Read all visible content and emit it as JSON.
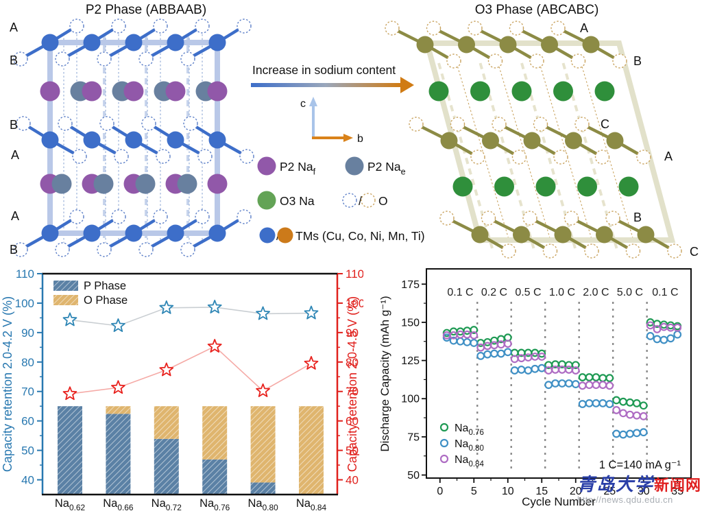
{
  "watermark": {
    "site_name_blue": "青岛大学",
    "site_name_red": "新闻网",
    "url": "http://news.qdu.edu.cn"
  },
  "structures": {
    "p2": {
      "title": "P2 Phase (ABBAAB)",
      "stack_labels": [
        "A",
        "B",
        "B",
        "A",
        "A",
        "B"
      ],
      "colors": {
        "tm": "#3d6ec9",
        "frame": "#b9c8e8",
        "o": "#5b7ec7",
        "naf": "#9158a9",
        "nae": "#68809f",
        "guide_thin": "#8fa9d6",
        "guide_wide": "#c7d4ec"
      }
    },
    "o3": {
      "title": "O3 Phase (ABCABC)",
      "stack_labels": [
        "A",
        "B",
        "C",
        "A",
        "B",
        "C"
      ],
      "colors": {
        "tm": "#8c8b45",
        "frame": "#e2e1ca",
        "o": "#c9a35f",
        "na": "#2f8f3b",
        "guide_thin": "#c9a35f",
        "guide_wide": "#e6e3cd"
      }
    },
    "arrow": {
      "label": "Increase in sodium content",
      "from_color": "#3d6ec9",
      "mid_color": "#9aa7bb",
      "to_color": "#d07b14"
    },
    "axes": {
      "c_label": "c",
      "b_label": "b",
      "c_color": "#a9c4e9",
      "b_color": "#d9821a"
    },
    "legend": {
      "p2_naf": {
        "base": "P2 Na",
        "sub": "f"
      },
      "p2_nae": {
        "base": "P2 Na",
        "sub": "e"
      },
      "o3_na": "O3 Na",
      "o3_na_color": "#63a356",
      "o_label": "O",
      "separator": "/",
      "tms_label": "TMs (Cu, Co, Ni, Mn, Ti)",
      "tm_orange": "#cc7a1a"
    }
  },
  "chart_data": [
    {
      "id": "capacity-retention",
      "type": "bar+line",
      "categories": [
        {
          "base": "Na",
          "sub": "0.62"
        },
        {
          "base": "Na",
          "sub": "0.66"
        },
        {
          "base": "Na",
          "sub": "0.72"
        },
        {
          "base": "Na",
          "sub": "0.76"
        },
        {
          "base": "Na",
          "sub": "0.80"
        },
        {
          "base": "Na",
          "sub": "0.84"
        }
      ],
      "ylabel_left": "Capacity retention 2.0-4.2 V (%)",
      "ylabel_right": "Capacity retention 2.0-4.5 V (%)",
      "ylim": [
        35,
        110
      ],
      "yticks": [
        40,
        50,
        60,
        70,
        80,
        90,
        100,
        110
      ],
      "series": [
        {
          "name": "Capacity retention 2.0-4.2 V (%)",
          "axis": "left",
          "marker": "star",
          "color": "#2e86b5",
          "line_color": "#c9ced2",
          "values": [
            94.3,
            92.3,
            98.4,
            98.6,
            96.4,
            96.6
          ]
        },
        {
          "name": "Capacity retention 2.0-4.5 V (%)",
          "axis": "right",
          "marker": "star",
          "color": "#e8211d",
          "line_color": "#f5aaa6",
          "values": [
            69.2,
            71.3,
            77.3,
            85.3,
            70.2,
            79.5
          ]
        }
      ],
      "bars": {
        "legend": [
          "P Phase",
          "O Phase"
        ],
        "colors": {
          "p": "#5b81a5",
          "o": "#dfb56e"
        },
        "baseline": 35,
        "top": 65,
        "p_phase_top": [
          65,
          62.4,
          53.9,
          46.9,
          39.1,
          35
        ]
      },
      "axis_colors": {
        "left": "#2878b0",
        "right": "#e0201c",
        "frame": "#111111"
      },
      "grid": false,
      "legend_position": "top-left"
    },
    {
      "id": "rate-capability",
      "type": "scatter",
      "xlabel": "Cycle Number",
      "ylabel": "Discharge Capacity (mAh g⁻¹)",
      "xlim": [
        -2,
        37
      ],
      "ylim": [
        48,
        185
      ],
      "xticks": [
        0,
        5,
        10,
        15,
        20,
        25,
        30,
        35
      ],
      "yticks": [
        50,
        75,
        100,
        125,
        150,
        175
      ],
      "rate_labels": [
        "0.1 C",
        "0.2 C",
        "0.5 C",
        "1.0 C",
        "2.0 C",
        "5.0 C",
        "0.1 C"
      ],
      "rate_dividers_x": [
        5.5,
        10.5,
        15.5,
        20.5,
        25.5,
        30.5
      ],
      "annotation": "1 C=140 mA g⁻¹",
      "divider_color": "#8a8a8a",
      "grid": false,
      "legend_position": "inside-left",
      "series": [
        {
          "label": {
            "base": "Na",
            "sub": "0.76"
          },
          "color": "#1f9a54",
          "x": [
            1,
            2,
            3,
            4,
            5,
            6,
            7,
            8,
            9,
            10,
            11,
            12,
            13,
            14,
            15,
            16,
            17,
            18,
            19,
            20,
            21,
            22,
            23,
            24,
            25,
            26,
            27,
            28,
            29,
            30,
            31,
            32,
            33,
            34,
            35
          ],
          "y": [
            143,
            144,
            144,
            144.5,
            145,
            136.5,
            137,
            138,
            139,
            140,
            130,
            130,
            130,
            130,
            129.5,
            122,
            122.5,
            122.5,
            122,
            122,
            114,
            114,
            114,
            113.5,
            113.5,
            99,
            98,
            97.5,
            97,
            95.5,
            150,
            149,
            148.5,
            148,
            147.5
          ]
        },
        {
          "label": {
            "base": "Na",
            "sub": "0.80"
          },
          "color": "#4090c5",
          "x": [
            1,
            2,
            3,
            4,
            5,
            6,
            7,
            8,
            9,
            10,
            11,
            12,
            13,
            14,
            15,
            16,
            17,
            18,
            19,
            20,
            21,
            22,
            23,
            24,
            25,
            26,
            27,
            28,
            29,
            30,
            31,
            32,
            33,
            34,
            35
          ],
          "y": [
            140,
            138,
            137.5,
            137,
            136.5,
            128,
            129,
            129.5,
            129.5,
            130.5,
            118.5,
            119,
            118.5,
            119.5,
            120,
            109,
            110,
            110,
            110,
            109.5,
            96.5,
            97,
            97,
            97,
            96.5,
            77,
            76.5,
            77,
            77.5,
            78,
            141,
            139,
            138.5,
            139.5,
            142
          ]
        },
        {
          "label": {
            "base": "Na",
            "sub": "0.84"
          },
          "color": "#ae6cc3",
          "x": [
            1,
            2,
            3,
            4,
            5,
            6,
            7,
            8,
            9,
            10,
            11,
            12,
            13,
            14,
            15,
            16,
            17,
            18,
            19,
            20,
            21,
            22,
            23,
            24,
            25,
            26,
            27,
            28,
            29,
            30,
            31,
            32,
            33,
            34,
            35
          ],
          "y": [
            141.5,
            141.5,
            142,
            142,
            141.5,
            133.5,
            134.5,
            135,
            135.5,
            136,
            126,
            126.5,
            127,
            127.5,
            127.5,
            118.5,
            119,
            119,
            119,
            118.5,
            108.5,
            109,
            109,
            109,
            108.5,
            92.5,
            90.5,
            89.5,
            89,
            88.5,
            148,
            145.5,
            147,
            146.5,
            146.5
          ]
        }
      ]
    }
  ]
}
